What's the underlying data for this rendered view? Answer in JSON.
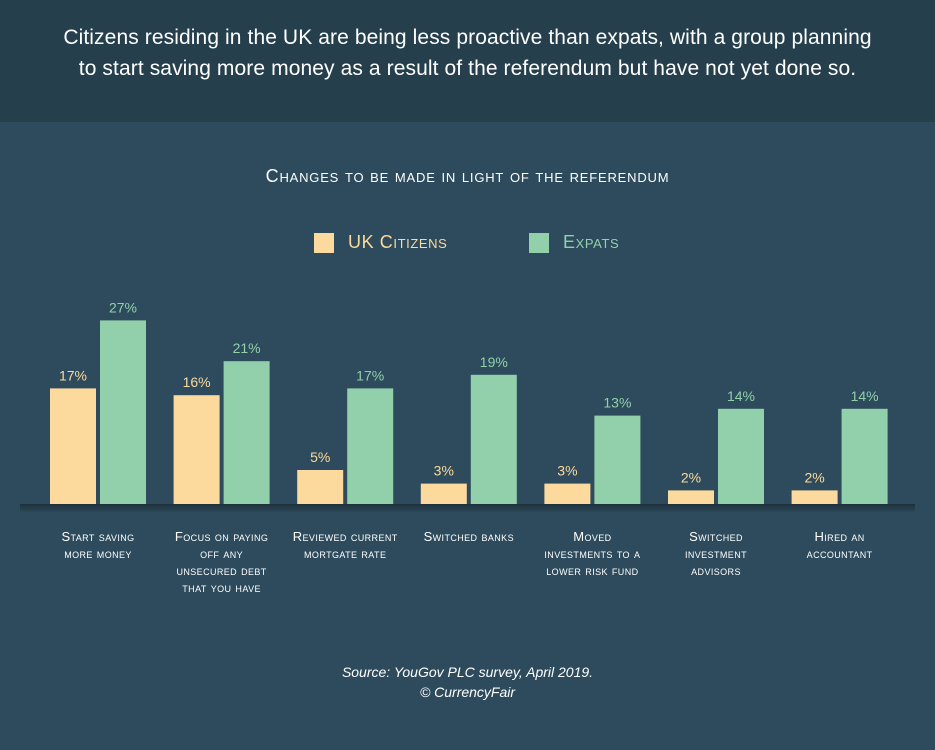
{
  "header": {
    "title": "Citizens residing in the UK are being less proactive than expats, with a group planning to start saving more money as a result of the referendum but have not yet done so."
  },
  "colors": {
    "background": "#2d4b5c",
    "header_background": "#263f4d",
    "uk_citizens": "#fcd99d",
    "expats": "#92d0ab",
    "text": "#ffffff"
  },
  "chart_data": {
    "type": "bar",
    "title": "Changes to be made in light of the referendum",
    "categories": [
      "Start saving more money",
      "Focus on paying off any unsecured debt that you have",
      "Reviewed current mortgate rate",
      "Switched banks",
      "Moved investments to a lower risk fund",
      "Switched investment advisors",
      "Hired an accountant"
    ],
    "series": [
      {
        "name": "UK Citizens",
        "values": [
          17,
          16,
          5,
          3,
          3,
          2,
          2
        ]
      },
      {
        "name": "Expats",
        "values": [
          27,
          21,
          17,
          19,
          13,
          14,
          14
        ]
      }
    ],
    "value_suffix": "%",
    "ylim": [
      0,
      30
    ],
    "grid": false,
    "legend": "top-center",
    "xlabel": "",
    "ylabel": ""
  },
  "source": {
    "line1": "Source: YouGov PLC survey, April 2019.",
    "line2": "© CurrencyFair"
  }
}
